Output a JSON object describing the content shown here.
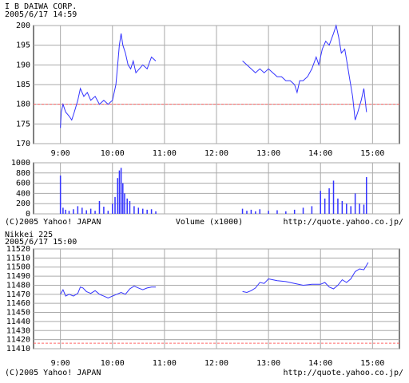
{
  "chart_data": [
    {
      "type": "line",
      "title": "I B DAIWA CORP.",
      "subtitle": "2005/6/17 14:59",
      "x": [
        540,
        541,
        543,
        546,
        550,
        553,
        556,
        560,
        563,
        567,
        571,
        575,
        580,
        585,
        590,
        595,
        600,
        604,
        606,
        608,
        610,
        612,
        615,
        618,
        621,
        624,
        627,
        631,
        635,
        640,
        645,
        650,
        700,
        750,
        755,
        760,
        765,
        770,
        775,
        780,
        785,
        790,
        795,
        800,
        805,
        810,
        813,
        816,
        820,
        825,
        830,
        835,
        838,
        842,
        846,
        850,
        855,
        858,
        861,
        864,
        868,
        871,
        874,
        877,
        880,
        883,
        887,
        890,
        893
      ],
      "series": [
        {
          "name": "I B DAIWA CORP.",
          "color": "#3333ff",
          "values": [
            174,
            178,
            180,
            178,
            177,
            176,
            178,
            181,
            184,
            182,
            183,
            181,
            182,
            180,
            181,
            180,
            181,
            185,
            190,
            195,
            198,
            195,
            193,
            190,
            189,
            191,
            188,
            189,
            190,
            189,
            192,
            191,
            null,
            191,
            190,
            189,
            188,
            189,
            188,
            189,
            188,
            187,
            187,
            186,
            186,
            185,
            183,
            186,
            186,
            187,
            189,
            192,
            190,
            194,
            196,
            195,
            198,
            200,
            197,
            193,
            194,
            190,
            186,
            182,
            176,
            178,
            181,
            184,
            178
          ]
        }
      ],
      "xlim": [
        509,
        931
      ],
      "xticks": [
        {
          "value": 540,
          "label": "9:00"
        },
        {
          "value": 600,
          "label": "10:00"
        },
        {
          "value": 660,
          "label": "11:00"
        },
        {
          "value": 720,
          "label": "12:00"
        },
        {
          "value": 780,
          "label": "13:00"
        },
        {
          "value": 840,
          "label": "14:00"
        },
        {
          "value": 900,
          "label": "15:00"
        }
      ],
      "ylim": [
        170,
        200
      ],
      "yticks": [
        170,
        175,
        180,
        185,
        190,
        195,
        200
      ],
      "reference_line": 180,
      "reference_color": "#ff6666",
      "grid": true
    },
    {
      "type": "bar",
      "title": "Volume (x1000)",
      "copyright": "(C)2005 Yahoo! JAPAN",
      "url": "http://quote.yahoo.co.jp/",
      "x": [
        540,
        543,
        546,
        550,
        555,
        560,
        565,
        570,
        575,
        580,
        585,
        590,
        595,
        600,
        603,
        606,
        608,
        610,
        612,
        614,
        617,
        620,
        625,
        630,
        635,
        640,
        645,
        650,
        750,
        755,
        760,
        765,
        770,
        780,
        790,
        800,
        810,
        820,
        830,
        840,
        845,
        850,
        855,
        860,
        865,
        870,
        875,
        880,
        885,
        890,
        893
      ],
      "series": [
        {
          "name": "Volume (x1000)",
          "color": "#3333ff",
          "values": [
            750,
            120,
            80,
            60,
            90,
            150,
            120,
            70,
            100,
            60,
            250,
            140,
            60,
            200,
            330,
            700,
            850,
            900,
            600,
            400,
            300,
            250,
            150,
            120,
            100,
            80,
            90,
            50,
            100,
            60,
            80,
            50,
            90,
            60,
            70,
            50,
            80,
            120,
            150,
            450,
            300,
            500,
            650,
            300,
            250,
            200,
            150,
            400,
            200,
            180,
            720
          ]
        }
      ],
      "xlim": [
        509,
        931
      ],
      "xticks": [
        540,
        600,
        660,
        720,
        780,
        840,
        900
      ],
      "ylim": [
        0,
        1000
      ],
      "yticks": [
        0,
        200,
        400,
        600,
        800,
        1000
      ],
      "grid": true
    },
    {
      "type": "line",
      "title": "Nikkei 225",
      "subtitle": "2005/6/17 15:00",
      "copyright": "(C)2005 Yahoo! JAPAN",
      "url": "http://quote.yahoo.co.jp/",
      "x": [
        540,
        543,
        546,
        550,
        555,
        560,
        563,
        566,
        570,
        575,
        580,
        585,
        590,
        595,
        600,
        605,
        610,
        615,
        620,
        625,
        630,
        635,
        640,
        645,
        650,
        700,
        750,
        755,
        760,
        765,
        770,
        775,
        780,
        785,
        790,
        800,
        810,
        820,
        830,
        840,
        845,
        850,
        855,
        860,
        865,
        870,
        875,
        880,
        885,
        890,
        895
      ],
      "series": [
        {
          "name": "Nikkei 225",
          "color": "#3333ff",
          "values": [
            11470,
            11475,
            11468,
            11470,
            11468,
            11471,
            11478,
            11477,
            11473,
            11471,
            11474,
            11470,
            11468,
            11466,
            11468,
            11470,
            11472,
            11470,
            11476,
            11479,
            11477,
            11475,
            11477,
            11478,
            11478,
            null,
            11473,
            11472,
            11474,
            11477,
            11483,
            11482,
            11487,
            11486,
            11485,
            11484,
            11482,
            11480,
            11481,
            11481,
            11483,
            11478,
            11476,
            11480,
            11486,
            11483,
            11487,
            11495,
            11498,
            11497,
            11505
          ]
        }
      ],
      "xlim": [
        509,
        931
      ],
      "xticks": [
        {
          "value": 540,
          "label": "9:00"
        },
        {
          "value": 600,
          "label": "10:00"
        },
        {
          "value": 660,
          "label": "11:00"
        },
        {
          "value": 720,
          "label": "12:00"
        },
        {
          "value": 780,
          "label": "13:00"
        },
        {
          "value": 840,
          "label": "14:00"
        },
        {
          "value": 900,
          "label": "15:00"
        }
      ],
      "ylim": [
        11410,
        11520
      ],
      "yticks": [
        11410,
        11420,
        11430,
        11440,
        11450,
        11460,
        11470,
        11480,
        11490,
        11500,
        11510,
        11520
      ],
      "reference_line": 11416,
      "reference_color": "#ff6666",
      "grid": true
    }
  ]
}
